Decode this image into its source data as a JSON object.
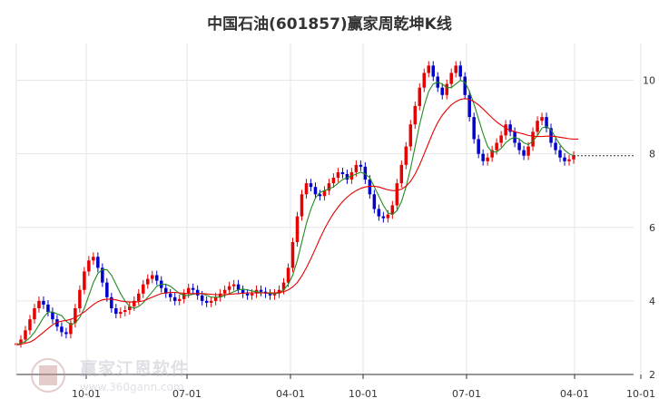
{
  "chart_data": {
    "type": "candlestick",
    "title": "中国石油(601857)赢家周乾坤K线",
    "x_ticks": [
      "10-01",
      "07-01",
      "04-01",
      "10-01",
      "07-01",
      "04-01",
      "10-01"
    ],
    "y_ticks": [
      "10",
      "8",
      "6",
      "4",
      "2"
    ],
    "ylim": [
      2,
      11
    ],
    "grid": true,
    "last_close": 7.95,
    "series": [
      {
        "name": "weekly-close",
        "color": "#e60000",
        "values": [
          2.85,
          2.95,
          3.2,
          3.5,
          3.8,
          4.0,
          3.9,
          3.7,
          3.5,
          3.3,
          3.15,
          3.1,
          3.4,
          3.8,
          4.3,
          4.8,
          5.1,
          5.2,
          4.9,
          4.5,
          4.1,
          3.8,
          3.65,
          3.7,
          3.75,
          3.85,
          4.0,
          4.2,
          4.45,
          4.6,
          4.7,
          4.55,
          4.35,
          4.2,
          4.1,
          4.0,
          4.05,
          4.2,
          4.35,
          4.3,
          4.15,
          4.0,
          3.95,
          4.0,
          4.1,
          4.2,
          4.3,
          4.4,
          4.45,
          4.3,
          4.2,
          4.15,
          4.2,
          4.3,
          4.25,
          4.2,
          4.15,
          4.2,
          4.3,
          4.5,
          4.9,
          5.6,
          6.3,
          6.9,
          7.2,
          7.1,
          6.9,
          6.85,
          7.0,
          7.2,
          7.35,
          7.5,
          7.45,
          7.3,
          7.5,
          7.7,
          7.65,
          7.3,
          6.9,
          6.5,
          6.3,
          6.25,
          6.35,
          6.6,
          7.2,
          7.7,
          8.2,
          8.8,
          9.3,
          9.8,
          10.2,
          10.4,
          10.1,
          9.8,
          9.6,
          9.9,
          10.2,
          10.4,
          10.1,
          9.6,
          9.0,
          8.4,
          8.0,
          7.8,
          7.9,
          8.1,
          8.3,
          8.5,
          8.8,
          8.6,
          8.3,
          8.1,
          7.95,
          8.2,
          8.6,
          8.9,
          9.0,
          8.7,
          8.3,
          8.1,
          7.9,
          7.8,
          7.85,
          7.95
        ]
      },
      {
        "name": "ma-short",
        "color": "#228b22",
        "values": [
          2.8,
          2.85,
          2.9,
          3.0,
          3.15,
          3.35,
          3.55,
          3.7,
          3.7,
          3.65,
          3.6,
          3.45,
          3.35,
          3.4,
          3.55,
          3.8,
          4.15,
          4.5,
          4.75,
          4.85,
          4.85,
          4.7,
          4.45,
          4.2,
          4.0,
          3.85,
          3.8,
          3.85,
          3.95,
          4.1,
          4.25,
          4.4,
          4.45,
          4.45,
          4.4,
          4.3,
          4.2,
          4.15,
          4.15,
          4.18,
          4.2,
          4.2,
          4.15,
          4.1,
          4.1,
          4.1,
          4.15,
          4.2,
          4.25,
          4.3,
          4.32,
          4.3,
          4.27,
          4.25,
          4.23,
          4.22,
          4.2,
          4.2,
          4.22,
          4.3,
          4.45,
          4.7,
          5.1,
          5.6,
          6.1,
          6.5,
          6.8,
          6.95,
          7.0,
          7.05,
          7.1,
          7.2,
          7.3,
          7.35,
          7.4,
          7.45,
          7.5,
          7.45,
          7.35,
          7.1,
          6.85,
          6.6,
          6.4,
          6.35,
          6.45,
          6.7,
          7.1,
          7.6,
          8.2,
          8.8,
          9.3,
          9.7,
          9.9,
          9.95,
          9.9,
          9.8,
          9.8,
          9.9,
          10.0,
          9.95,
          9.7,
          9.35,
          8.95,
          8.55,
          8.2,
          8.05,
          8.05,
          8.15,
          8.3,
          8.4,
          8.45,
          8.4,
          8.3,
          8.25,
          8.35,
          8.5,
          8.7,
          8.75,
          8.65,
          8.45,
          8.25,
          8.1,
          8.0,
          7.95
        ]
      },
      {
        "name": "ma-long",
        "color": "#e60000",
        "values": [
          2.8,
          2.82,
          2.85,
          2.88,
          2.95,
          3.05,
          3.15,
          3.25,
          3.35,
          3.42,
          3.45,
          3.47,
          3.5,
          3.55,
          3.62,
          3.7,
          3.8,
          3.9,
          3.98,
          4.03,
          4.05,
          4.05,
          4.03,
          4.0,
          3.98,
          3.97,
          3.97,
          3.98,
          4.0,
          4.05,
          4.1,
          4.15,
          4.2,
          4.22,
          4.23,
          4.23,
          4.22,
          4.21,
          4.2,
          4.2,
          4.2,
          4.2,
          4.19,
          4.18,
          4.17,
          4.17,
          4.17,
          4.18,
          4.19,
          4.2,
          4.21,
          4.22,
          4.22,
          4.22,
          4.22,
          4.22,
          4.22,
          4.22,
          4.23,
          4.25,
          4.3,
          4.38,
          4.5,
          4.68,
          4.9,
          5.15,
          5.42,
          5.7,
          5.95,
          6.18,
          6.38,
          6.55,
          6.7,
          6.82,
          6.92,
          7.0,
          7.06,
          7.1,
          7.12,
          7.12,
          7.1,
          7.06,
          7.02,
          7.0,
          7.0,
          7.04,
          7.12,
          7.25,
          7.45,
          7.7,
          8.0,
          8.3,
          8.6,
          8.85,
          9.05,
          9.2,
          9.33,
          9.42,
          9.48,
          9.5,
          9.48,
          9.42,
          9.33,
          9.22,
          9.1,
          8.98,
          8.87,
          8.78,
          8.7,
          8.64,
          8.6,
          8.57,
          8.54,
          8.5,
          8.48,
          8.47,
          8.47,
          8.48,
          8.48,
          8.47,
          8.45,
          8.43,
          8.41,
          8.4,
          8.4
        ]
      }
    ]
  },
  "watermark": {
    "brand": "赢家江恩软件",
    "url": "www.360gann.com",
    "seal_top": "江恩",
    "seal_bottom": "赢家"
  },
  "colors": {
    "up": "#e60000",
    "down": "#0000cc",
    "ma_short": "#228b22",
    "ma_long": "#e60000",
    "grid": "#e6e6e6"
  }
}
